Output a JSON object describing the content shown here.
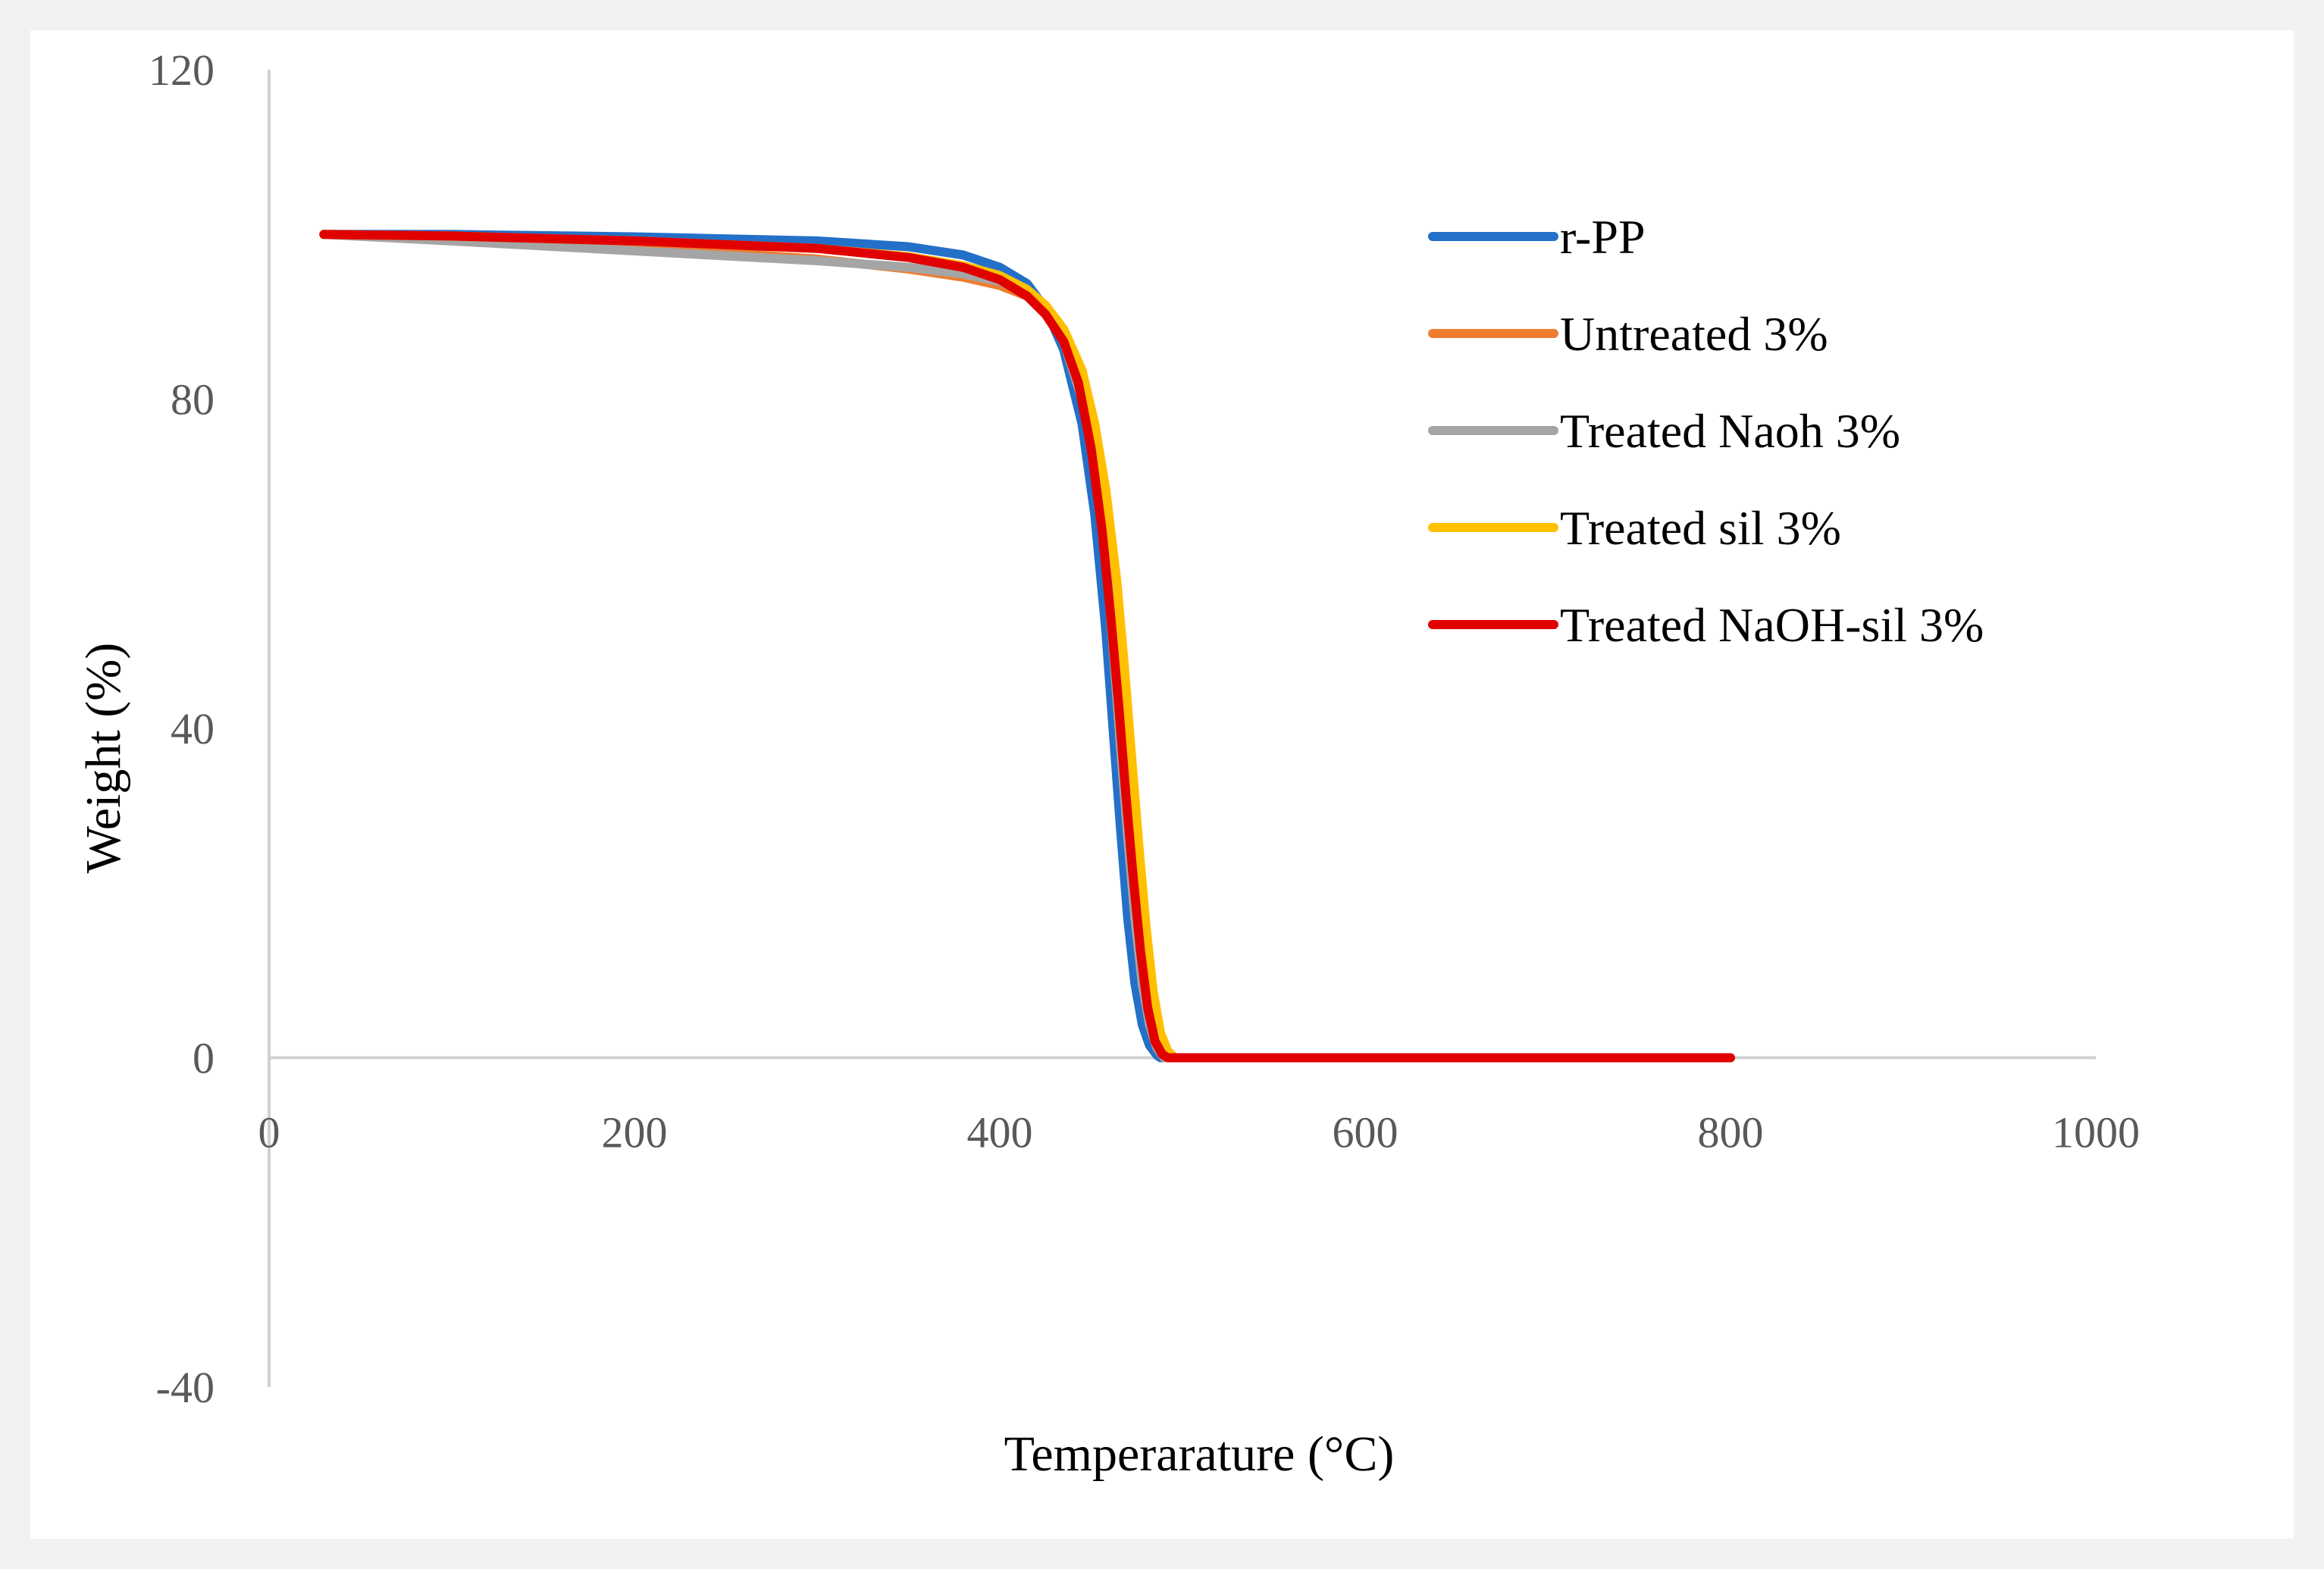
{
  "chart_data": {
    "type": "line",
    "title": "",
    "xlabel": "Temperarature (°C)",
    "ylabel": "Weight (%)",
    "xlim": [
      0,
      1000
    ],
    "ylim": [
      -40,
      120
    ],
    "xticks": [
      0,
      200,
      400,
      600,
      800,
      1000
    ],
    "yticks": [
      -40,
      0,
      40,
      80,
      120
    ],
    "grid": false,
    "legend_position": "top-right",
    "series": [
      {
        "name": "r-PP",
        "color": "#2470c8",
        "x": [
          30,
          100,
          200,
          300,
          350,
          380,
          400,
          415,
          425,
          435,
          445,
          452,
          458,
          462,
          466,
          470,
          474,
          478,
          482,
          486,
          488,
          800
        ],
        "y": [
          100,
          100,
          99.7,
          99.2,
          98.5,
          97.5,
          96,
          94,
          91,
          86,
          77,
          66,
          52,
          40,
          28,
          17,
          9,
          4,
          1.5,
          0.3,
          0,
          0
        ]
      },
      {
        "name": "Untreated 3%",
        "color": "#ed7d31",
        "x": [
          30,
          100,
          200,
          300,
          350,
          380,
          400,
          415,
          425,
          435,
          445,
          452,
          458,
          462,
          466,
          470,
          474,
          478,
          482,
          486,
          490,
          800
        ],
        "y": [
          100,
          99.6,
          98.5,
          97,
          95.8,
          94.8,
          93.8,
          92.5,
          90.5,
          87,
          80,
          72,
          61,
          50,
          38,
          27,
          17,
          9,
          4,
          1.2,
          0,
          0
        ]
      },
      {
        "name": "Treated Naoh 3%",
        "color": "#a5a5a5",
        "x": [
          30,
          100,
          200,
          300,
          350,
          380,
          400,
          415,
          425,
          435,
          445,
          452,
          458,
          462,
          466,
          470,
          474,
          478,
          482,
          486,
          490,
          800
        ],
        "y": [
          100,
          99.2,
          98,
          96.8,
          96,
          95.2,
          94.3,
          93,
          91,
          87,
          80,
          72,
          61,
          50,
          38,
          27,
          17,
          9,
          4,
          1.2,
          0,
          0
        ]
      },
      {
        "name": "Treated sil 3%",
        "color": "#ffc000",
        "x": [
          30,
          100,
          200,
          300,
          350,
          380,
          400,
          415,
          425,
          435,
          445,
          452,
          458,
          464,
          468,
          472,
          476,
          480,
          484,
          488,
          492,
          496,
          800
        ],
        "y": [
          100,
          99.8,
          99.2,
          98.3,
          97.3,
          96.2,
          95,
          93.3,
          91.4,
          88.5,
          83.5,
          77,
          69,
          58,
          48,
          37,
          26,
          16,
          8,
          3,
          0.8,
          0,
          0
        ]
      },
      {
        "name": "Treated NaOH-sil 3%",
        "color": "#e00000",
        "x": [
          30,
          100,
          200,
          300,
          350,
          380,
          400,
          415,
          425,
          435,
          443,
          450,
          456,
          461,
          465,
          469,
          473,
          477,
          481,
          485,
          489,
          492,
          800
        ],
        "y": [
          100,
          99.8,
          99.2,
          98.3,
          97.2,
          96,
          94.5,
          92.5,
          90.3,
          87,
          82,
          74,
          64,
          53,
          43,
          32,
          22,
          13,
          6,
          2,
          0.4,
          0,
          0
        ]
      }
    ]
  }
}
